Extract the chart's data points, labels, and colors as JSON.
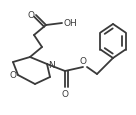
{
  "bg_color": "#ffffff",
  "line_color": "#3a3a3a",
  "line_width": 1.3,
  "figsize": [
    1.36,
    1.16
  ],
  "dpi": 100,
  "xlim": [
    0,
    136
  ],
  "ylim": [
    0,
    116
  ]
}
